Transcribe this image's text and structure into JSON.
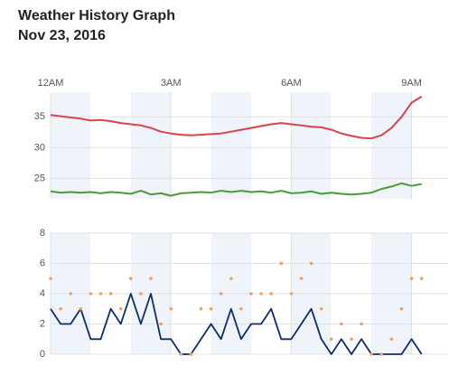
{
  "title": "Weather History Graph",
  "subtitle": "Nov 23, 2016",
  "chart_data": [
    {
      "type": "line",
      "x": [
        0,
        0.25,
        0.5,
        0.75,
        1,
        1.25,
        1.5,
        1.75,
        2,
        2.25,
        2.5,
        2.75,
        3,
        3.25,
        3.5,
        3.75,
        4,
        4.25,
        4.5,
        4.75,
        5,
        5.25,
        5.5,
        5.75,
        6,
        6.25,
        6.5,
        6.75,
        7,
        7.25,
        7.5,
        7.75,
        8,
        8.25,
        8.5,
        8.75,
        9,
        9.25
      ],
      "xlim": [
        0,
        9.28
      ],
      "xticks": [
        {
          "value": 0,
          "label": "12AM"
        },
        {
          "value": 3,
          "label": "3AM"
        },
        {
          "value": 6,
          "label": "6AM"
        },
        {
          "value": 9,
          "label": "9AM"
        }
      ],
      "ylim": [
        21.7,
        39
      ],
      "yticks": [
        25,
        30,
        35
      ],
      "grid": true,
      "series": [
        {
          "color": "#d9434b",
          "values": [
            35.3,
            35.1,
            34.9,
            34.7,
            34.4,
            34.5,
            34.3,
            34.0,
            33.8,
            33.6,
            33.2,
            32.6,
            32.3,
            32.1,
            32.0,
            32.1,
            32.2,
            32.3,
            32.6,
            32.9,
            33.2,
            33.5,
            33.8,
            34.0,
            33.8,
            33.6,
            33.4,
            33.3,
            32.9,
            32.3,
            31.9,
            31.6,
            31.5,
            32.0,
            33.2,
            35.0,
            37.3,
            38.3
          ]
        },
        {
          "color": "#4e9a3a",
          "values": [
            22.9,
            22.7,
            22.8,
            22.7,
            22.8,
            22.6,
            22.8,
            22.7,
            22.5,
            23.0,
            22.4,
            22.6,
            22.2,
            22.6,
            22.7,
            22.8,
            22.7,
            23.0,
            22.8,
            23.0,
            22.8,
            22.9,
            22.7,
            23.0,
            22.6,
            22.7,
            22.9,
            22.5,
            22.7,
            22.5,
            22.4,
            22.5,
            22.7,
            23.3,
            23.7,
            24.2,
            23.8,
            24.1
          ]
        }
      ]
    },
    {
      "type": "line",
      "x": [
        0,
        0.25,
        0.5,
        0.75,
        1,
        1.25,
        1.5,
        1.75,
        2,
        2.25,
        2.5,
        2.75,
        3,
        3.25,
        3.5,
        3.75,
        4,
        4.25,
        4.5,
        4.75,
        5,
        5.25,
        5.5,
        5.75,
        6,
        6.25,
        6.5,
        6.75,
        7,
        7.25,
        7.5,
        7.75,
        8,
        8.25,
        8.5,
        8.75,
        9,
        9.25
      ],
      "xlim": [
        0,
        9.28
      ],
      "xticks": [
        0,
        3,
        6,
        9
      ],
      "ylim": [
        0,
        8
      ],
      "yticks": [
        0,
        2,
        4,
        6,
        8
      ],
      "grid": true,
      "series": [
        {
          "type": "line",
          "color": "#0d2d6b",
          "values": [
            3,
            2,
            2,
            3,
            1,
            1,
            3,
            2,
            4,
            2,
            4,
            1,
            1,
            0,
            0,
            1,
            2,
            1,
            3,
            1,
            2,
            2,
            3,
            1,
            1,
            2,
            3,
            1,
            0,
            1,
            0,
            1,
            0,
            0,
            0,
            0,
            1,
            0
          ]
        },
        {
          "type": "scatter",
          "color": "#f0a060",
          "values": [
            5,
            3,
            4,
            3,
            4,
            4,
            4,
            3,
            5,
            4,
            5,
            2,
            3,
            0,
            0,
            3,
            3,
            4,
            5,
            3,
            4,
            4,
            4,
            6,
            4,
            5,
            6,
            3,
            1,
            2,
            1,
            2,
            0,
            0,
            1,
            3,
            5,
            5
          ]
        }
      ]
    }
  ]
}
